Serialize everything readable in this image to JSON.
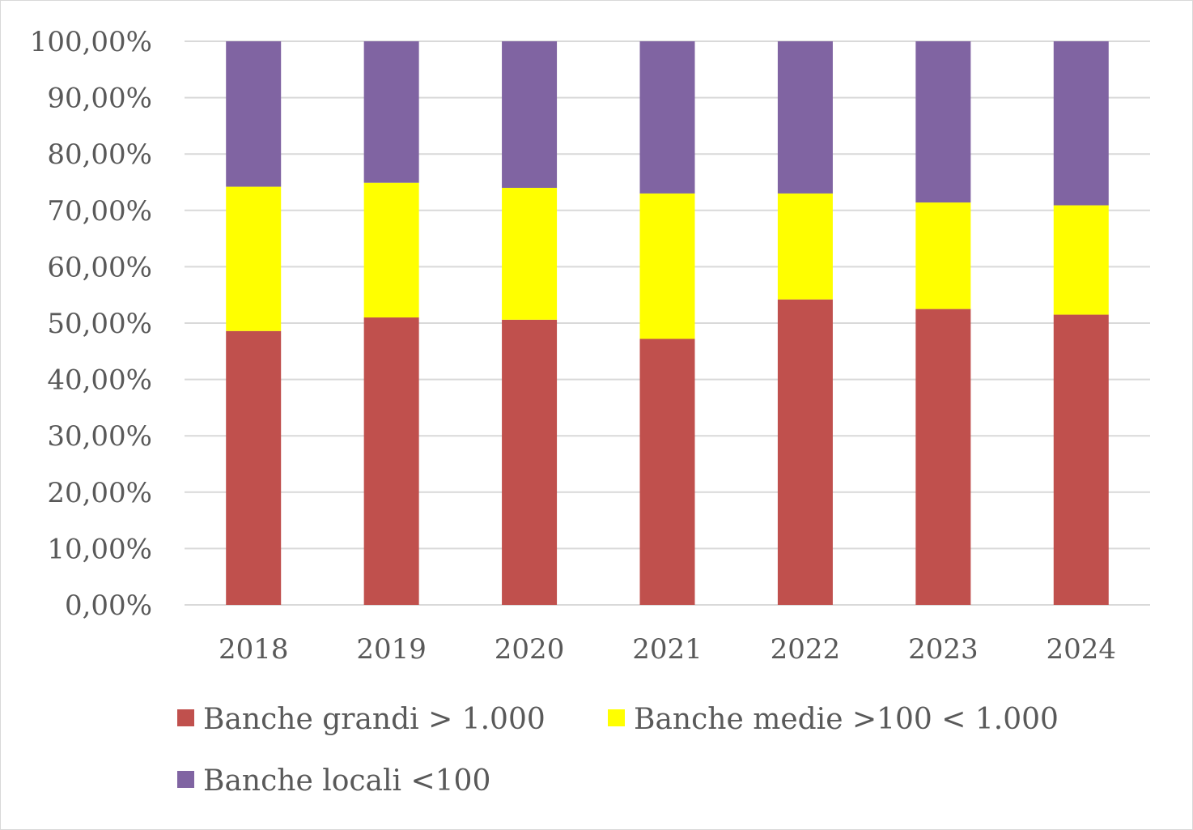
{
  "chart_data": {
    "type": "bar",
    "stacked": true,
    "categories": [
      "2018",
      "2019",
      "2020",
      "2021",
      "2022",
      "2023",
      "2024"
    ],
    "series": [
      {
        "name": "Banche grandi > 1.000",
        "color": "#C0504D",
        "values": [
          48.6,
          51.0,
          50.6,
          47.2,
          54.2,
          52.5,
          51.5
        ]
      },
      {
        "name": "Banche medie >100 < 1.000",
        "color": "#FFFF00",
        "values": [
          25.6,
          23.9,
          23.4,
          25.8,
          18.8,
          18.9,
          19.4
        ]
      },
      {
        "name": "Banche locali <100",
        "color": "#8064A2",
        "values": [
          25.8,
          25.1,
          26.0,
          27.0,
          27.0,
          28.6,
          29.1
        ]
      }
    ],
    "yticks": [
      "0,00%",
      "10,00%",
      "20,00%",
      "30,00%",
      "40,00%",
      "50,00%",
      "60,00%",
      "70,00%",
      "80,00%",
      "90,00%",
      "100,00%"
    ],
    "ylim": [
      0,
      100
    ],
    "grid": true,
    "legend_position": "bottom"
  }
}
